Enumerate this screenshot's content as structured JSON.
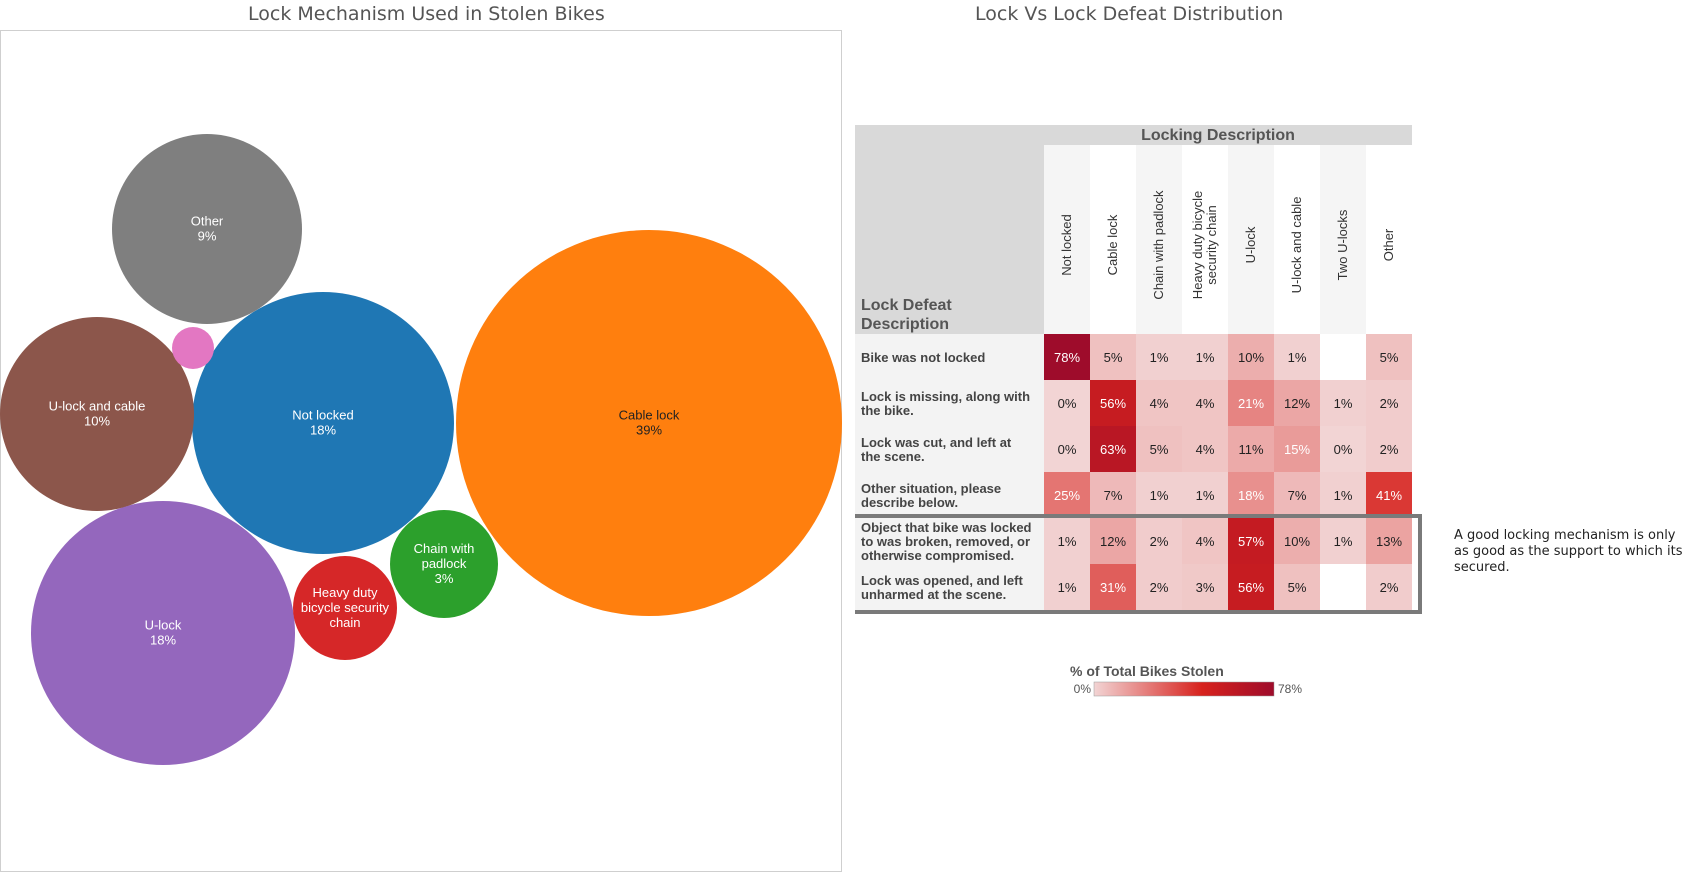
{
  "bubble_title": "Lock Mechanism Used in Stolen Bikes",
  "heatmap_title": "Lock Vs Lock Defeat Distribution",
  "annotation": "A good locking mechanism is only as good as the support to which its secured.",
  "chart_data": [
    {
      "type": "bubble",
      "title": "Lock Mechanism Used in Stolen Bikes",
      "items": [
        {
          "label": "Cable lock",
          "value_label": "39%",
          "value": 39,
          "color": "#ff7f0e"
        },
        {
          "label": "Not locked",
          "value_label": "18%",
          "value": 18,
          "color": "#1f77b4"
        },
        {
          "label": "U-lock",
          "value_label": "18%",
          "value": 18,
          "color": "#9467bd"
        },
        {
          "label": "U-lock and cable",
          "value_label": "10%",
          "value": 10,
          "color": "#8c564b"
        },
        {
          "label": "Other",
          "value_label": "9%",
          "value": 9,
          "color": "#7f7f7f"
        },
        {
          "label": "Chain with padlock",
          "value_label": "3%",
          "value": 3,
          "color": "#2ca02c"
        },
        {
          "label": "Heavy duty bicycle security chain",
          "value_label": "",
          "value": 2.4,
          "color": "#d62728"
        },
        {
          "label": "",
          "value_label": "",
          "value": 0.5,
          "color": "#e377c2"
        }
      ]
    },
    {
      "type": "heatmap",
      "title": "Lock Vs Lock Defeat Distribution",
      "column_header": "Locking Description",
      "row_header": "Lock Defeat Description",
      "columns": [
        "Not locked",
        "Cable lock",
        "Chain with padlock",
        "Heavy duty bicycle security chain",
        "U-lock",
        "U-lock and cable",
        "Two U-locks",
        "Other"
      ],
      "rows": [
        {
          "label": "Bike was not locked",
          "values": [
            78,
            5,
            1,
            1,
            10,
            1,
            null,
            5
          ]
        },
        {
          "label": "Lock is missing, along with the bike.",
          "values": [
            0,
            56,
            4,
            4,
            21,
            12,
            1,
            2
          ]
        },
        {
          "label": "Lock was cut, and left at the scene.",
          "values": [
            0,
            63,
            5,
            4,
            11,
            15,
            0,
            2
          ]
        },
        {
          "label": "Other situation, please describe below.",
          "values": [
            25,
            7,
            1,
            1,
            18,
            7,
            1,
            41
          ]
        },
        {
          "label": "Object that bike was locked to was broken, removed, or otherwise compromised.",
          "values": [
            1,
            12,
            2,
            4,
            57,
            10,
            1,
            13
          ]
        },
        {
          "label": "Lock was opened, and left unharmed at the scene.",
          "values": [
            1,
            31,
            2,
            3,
            56,
            5,
            null,
            2
          ]
        }
      ],
      "highlighted_rows": [
        4,
        5
      ],
      "legend": {
        "title": "% of Total Bikes Stolen",
        "min_label": "0%",
        "max_label": "78%",
        "min": 0,
        "max": 78
      },
      "colors": {
        "low": "#f2d4d4",
        "mid": "#d7221d",
        "high": "#9e0c2b"
      }
    }
  ]
}
